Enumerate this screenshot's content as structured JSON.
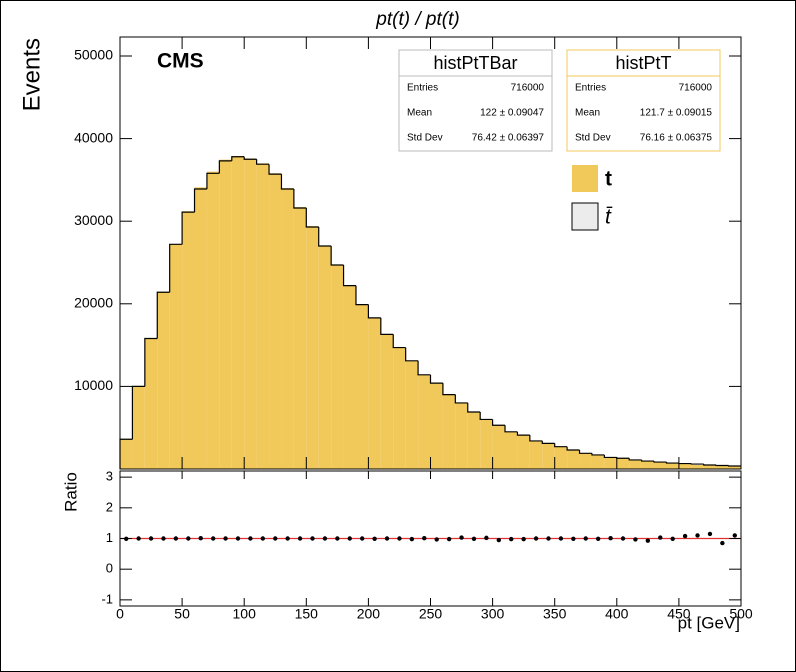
{
  "chart_data": [
    {
      "type": "histogram",
      "title": "pt(t) / pt(t)",
      "y_label": "Events",
      "annotation": "CMS",
      "bins": [
        0,
        10,
        20,
        30,
        40,
        50,
        60,
        70,
        80,
        90,
        100,
        110,
        120,
        130,
        140,
        150,
        160,
        170,
        180,
        190,
        200,
        210,
        220,
        230,
        240,
        250,
        260,
        270,
        280,
        290,
        300,
        310,
        320,
        330,
        340,
        350,
        360,
        370,
        380,
        390,
        400,
        410,
        420,
        430,
        440,
        450,
        460,
        470,
        480,
        490,
        500
      ],
      "series": [
        {
          "name": "histPtT",
          "legend_label": "t",
          "color": "#f1c85a",
          "values": [
            3580,
            10050,
            15850,
            21450,
            27250,
            31200,
            34100,
            36000,
            37450,
            37900,
            37600,
            37000,
            35800,
            34000,
            31700,
            29400,
            27050,
            24750,
            22250,
            19950,
            18300,
            16350,
            14700,
            13050,
            11400,
            10350,
            9000,
            8000,
            6950,
            5950,
            5300,
            4500,
            4100,
            3380,
            3100,
            2690,
            2300,
            1900,
            1700,
            1400,
            1290,
            1050,
            950,
            850,
            700,
            680,
            480,
            480,
            460,
            390
          ]
        },
        {
          "name": "histPtTBar",
          "legend_label": "t̄",
          "color": "#000000",
          "legend_fill": "#ececec",
          "values": [
            3600,
            10000,
            15800,
            21400,
            27200,
            31100,
            33900,
            35800,
            37300,
            37800,
            37500,
            36900,
            35700,
            33900,
            31600,
            29300,
            27000,
            24700,
            22200,
            19900,
            18300,
            16300,
            14700,
            13100,
            11400,
            10400,
            9000,
            8000,
            6900,
            6000,
            5300,
            4500,
            4100,
            3400,
            3100,
            2700,
            2300,
            1900,
            1700,
            1400,
            1300,
            1100,
            960,
            840,
            720,
            660,
            600,
            480,
            420,
            360
          ]
        }
      ],
      "stats_labels": [
        "Entries",
        "Mean",
        "Std Dev"
      ],
      "stats": [
        {
          "name": "histPtTBar",
          "entries": 716000,
          "mean": "122 ± 0.09047",
          "std_dev": "76.42 ± 0.06397"
        },
        {
          "name": "histPtT",
          "entries": 716000,
          "mean": "121.7 ± 0.09015",
          "std_dev": "76.16 ± 0.06375"
        }
      ],
      "xlim": [
        0,
        500
      ],
      "xticks": [
        0,
        50,
        100,
        150,
        200,
        250,
        300,
        350,
        400,
        450,
        500
      ],
      "ylim": [
        0,
        52300
      ],
      "yticks": [
        10000,
        20000,
        30000,
        40000,
        50000
      ]
    },
    {
      "type": "scatter",
      "y_label": "Ratio",
      "x_label": "pt [GeV]",
      "color": "#000000",
      "reference": 1,
      "reference_color": "#e03030",
      "x": [
        5,
        15,
        25,
        35,
        45,
        55,
        65,
        75,
        85,
        95,
        105,
        115,
        125,
        135,
        145,
        155,
        165,
        175,
        185,
        195,
        205,
        215,
        225,
        235,
        245,
        255,
        265,
        275,
        285,
        295,
        305,
        315,
        325,
        335,
        345,
        355,
        365,
        375,
        385,
        395,
        405,
        415,
        425,
        435,
        445,
        455,
        465,
        475,
        485,
        495
      ],
      "values": [
        0.99,
        1.0,
        1.0,
        1.0,
        1.0,
        1.0,
        1.01,
        1.0,
        1.0,
        1.0,
        1.0,
        1.0,
        1.0,
        1.0,
        1.0,
        1.0,
        1.0,
        1.0,
        1.0,
        1.0,
        0.99,
        1.0,
        1.0,
        0.98,
        1.01,
        0.97,
        0.98,
        1.03,
        0.99,
        1.02,
        0.95,
        0.98,
        0.98,
        1.0,
        1.0,
        1.0,
        0.99,
        1.0,
        0.99,
        1.01,
        1.0,
        0.97,
        0.93,
        1.03,
        0.99,
        1.08,
        1.1,
        1.15,
        0.85,
        1.1
      ],
      "xlim": [
        0,
        500
      ],
      "xticks": [
        0,
        50,
        100,
        150,
        200,
        250,
        300,
        350,
        400,
        450,
        500
      ],
      "ylim": [
        -1.2,
        3.2
      ],
      "yticks": [
        -1,
        0,
        1,
        2,
        3
      ]
    }
  ]
}
